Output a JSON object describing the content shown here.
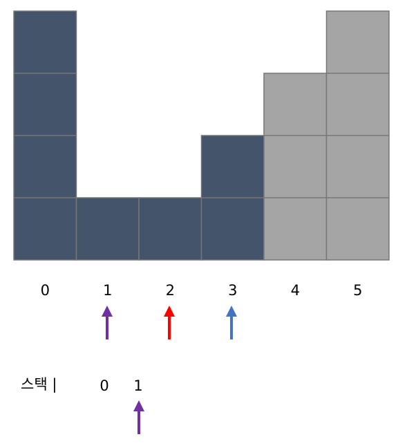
{
  "bars": [
    {
      "label": "0",
      "height": 4,
      "color": "#44546a"
    },
    {
      "label": "1",
      "height": 1,
      "color": "#44546a"
    },
    {
      "label": "2",
      "height": 1,
      "color": "#44546a"
    },
    {
      "label": "3",
      "height": 2,
      "color": "#44546a"
    },
    {
      "label": "4",
      "height": 3,
      "color": "#a5a5a5"
    },
    {
      "label": "5",
      "height": 4,
      "color": "#a5a5a5"
    }
  ],
  "stack": {
    "label": "스택 |",
    "items": [
      "0",
      "1"
    ]
  }
}
